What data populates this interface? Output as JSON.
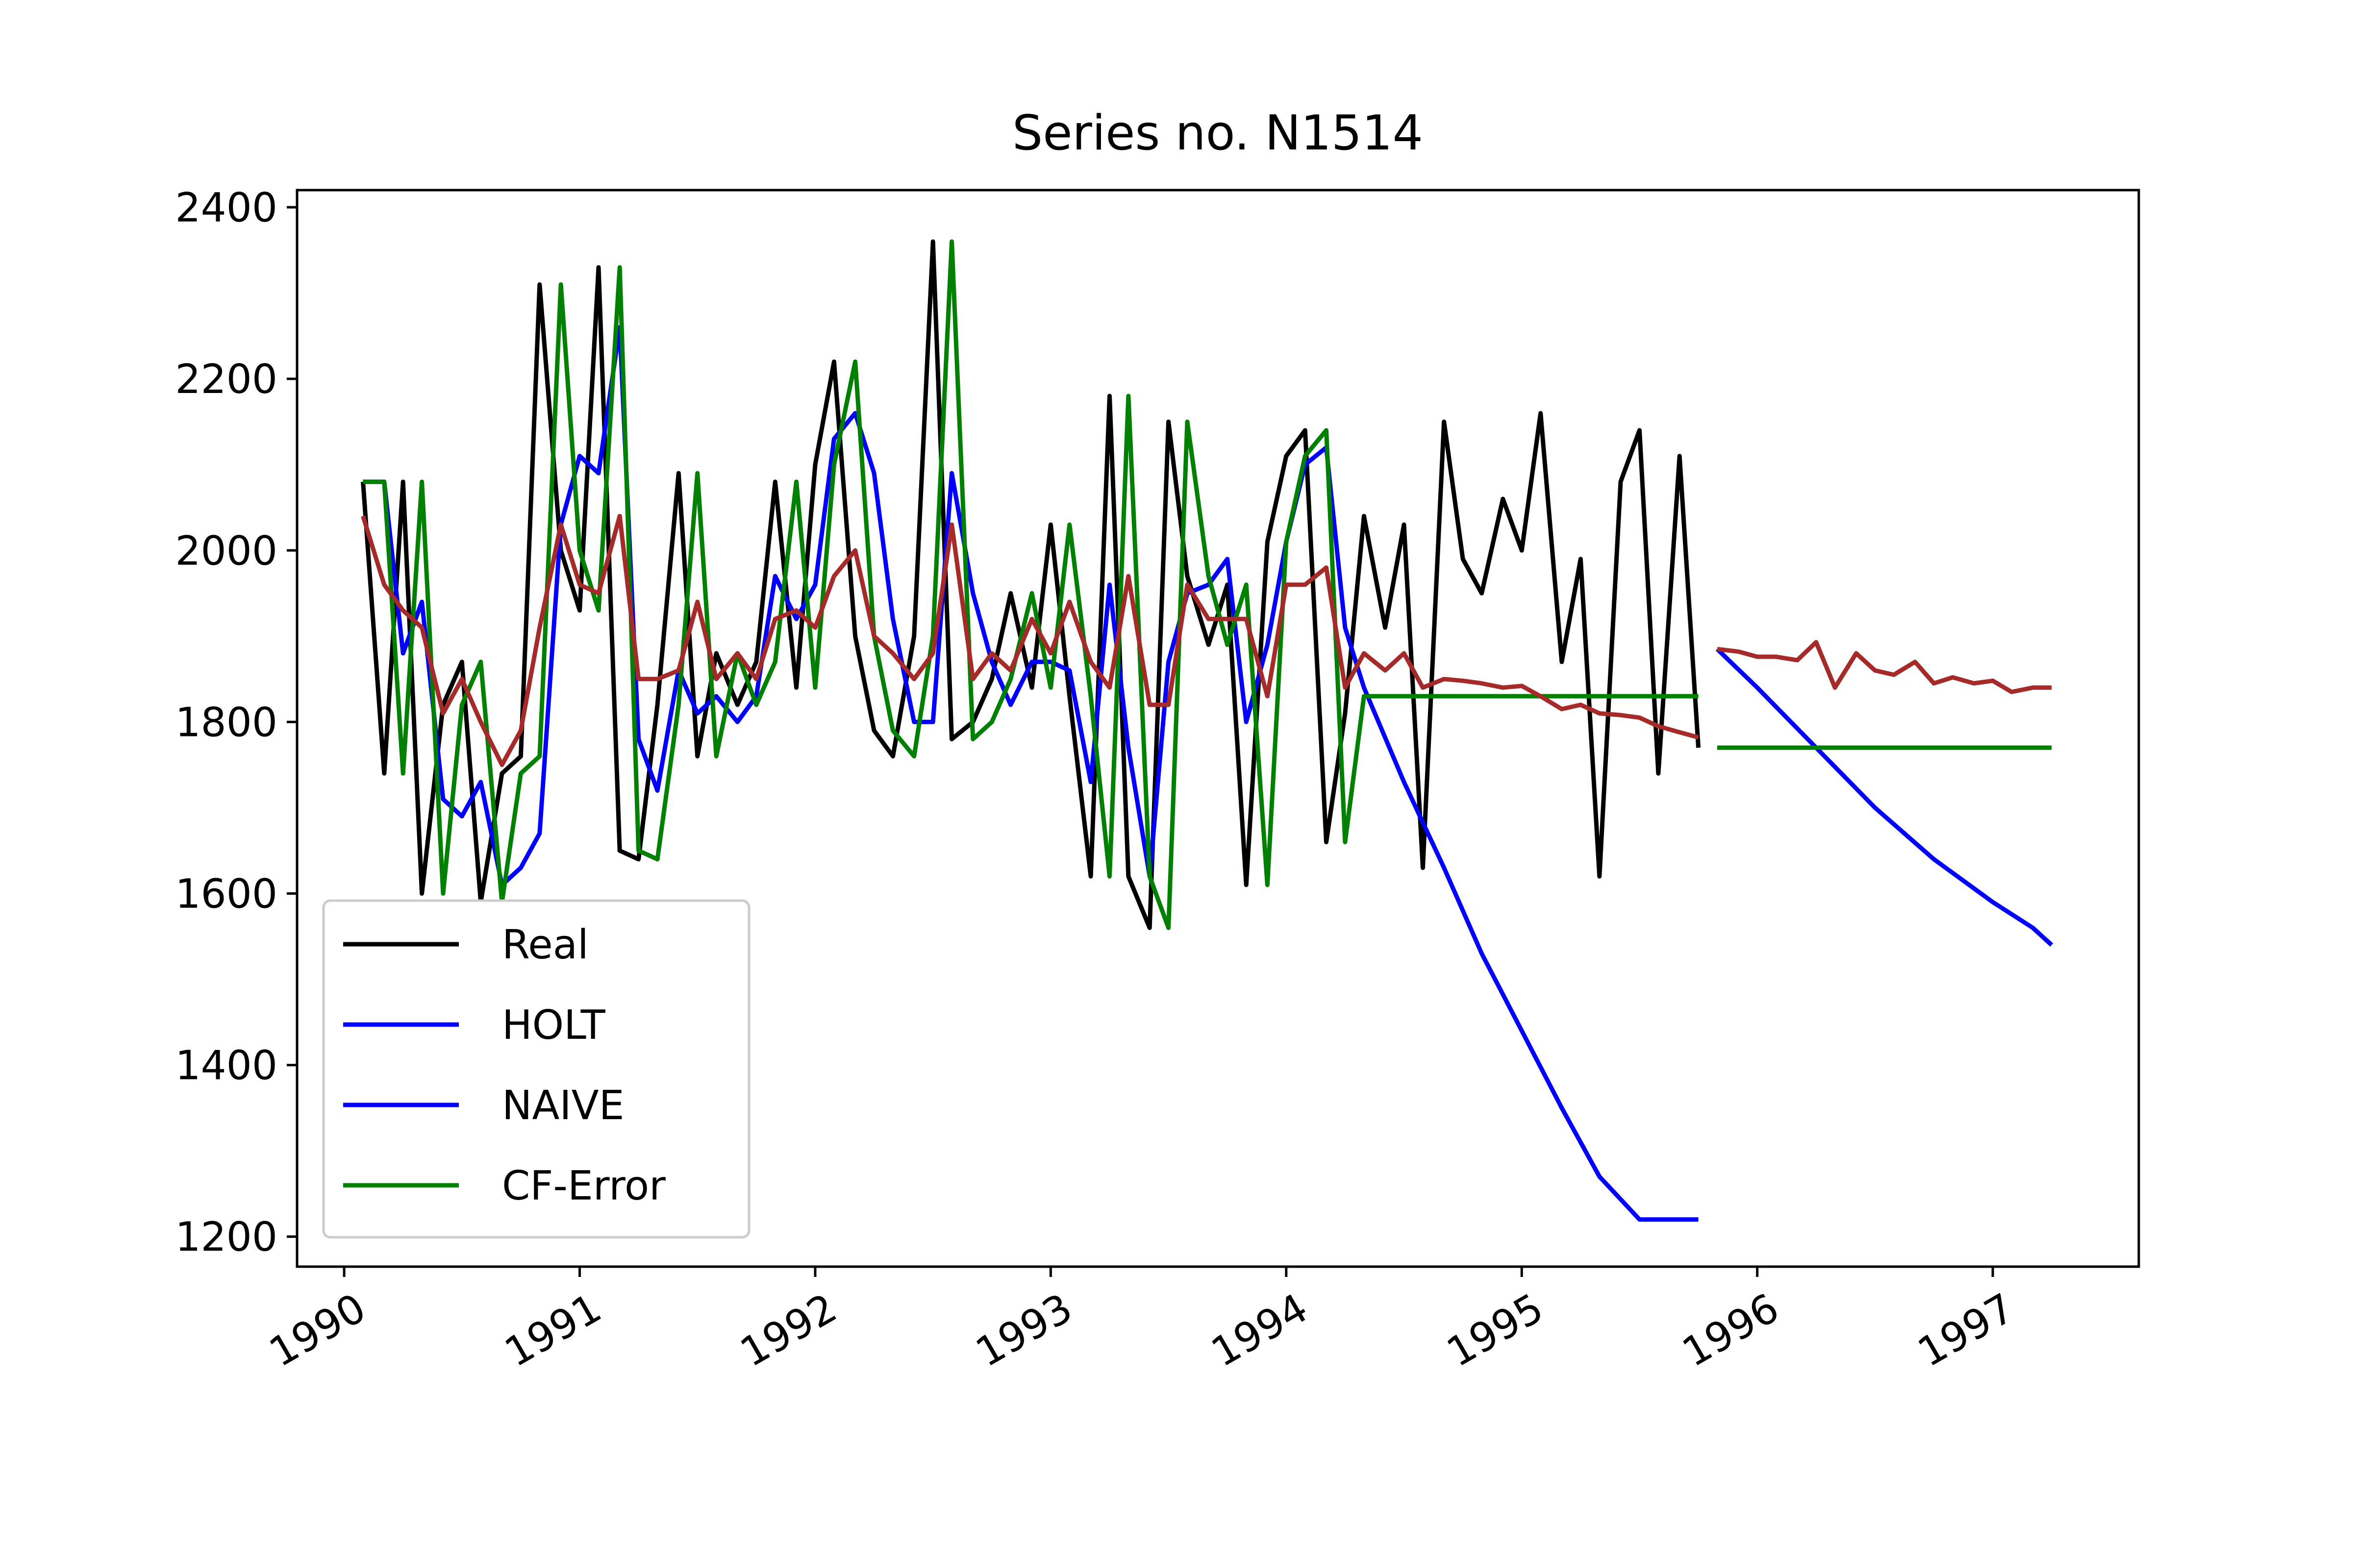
{
  "chart_data": {
    "type": "line",
    "title": "Series no. N1514",
    "xlabel": "",
    "ylabel": "",
    "xlim": [
      1989.8,
      1997.62
    ],
    "ylim": [
      1165,
      2420
    ],
    "x_ticks": [
      {
        "label": "1990",
        "value": 1990
      },
      {
        "label": "1991",
        "value": 1991
      },
      {
        "label": "1992",
        "value": 1992
      },
      {
        "label": "1993",
        "value": 1993
      },
      {
        "label": "1994",
        "value": 1994
      },
      {
        "label": "1995",
        "value": 1995
      },
      {
        "label": "1996",
        "value": 1996
      },
      {
        "label": "1997",
        "value": 1997
      }
    ],
    "y_ticks": [
      {
        "label": "1200",
        "value": 1200
      },
      {
        "label": "1400",
        "value": 1400
      },
      {
        "label": "1600",
        "value": 1600
      },
      {
        "label": "1800",
        "value": 1800
      },
      {
        "label": "2000",
        "value": 2000
      },
      {
        "label": "2200",
        "value": 2200
      },
      {
        "label": "2400",
        "value": 2400
      }
    ],
    "grid": false,
    "legend_position": "lower-left",
    "series": [
      {
        "name": "Real",
        "color": "#000000",
        "in_legend": true,
        "x": [
          1990.08,
          1990.17,
          1990.25,
          1990.33,
          1990.42,
          1990.5,
          1990.58,
          1990.67,
          1990.75,
          1990.83,
          1990.92,
          1991.0,
          1991.08,
          1991.17,
          1991.25,
          1991.33,
          1991.42,
          1991.5,
          1991.58,
          1991.67,
          1991.75,
          1991.83,
          1991.92,
          1992.0,
          1992.08,
          1992.17,
          1992.25,
          1992.33,
          1992.42,
          1992.5,
          1992.58,
          1992.67,
          1992.75,
          1992.83,
          1992.92,
          1993.0,
          1993.08,
          1993.17,
          1993.25,
          1993.33,
          1993.42,
          1993.5,
          1993.58,
          1993.67,
          1993.75,
          1993.83,
          1993.92,
          1994.0,
          1994.08,
          1994.17,
          1994.25,
          1994.33,
          1994.42,
          1994.5,
          1994.58,
          1994.67,
          1994.75,
          1994.83,
          1994.92,
          1995.0,
          1995.08,
          1995.17,
          1995.25,
          1995.33,
          1995.42,
          1995.5,
          1995.58,
          1995.67,
          1995.75
        ],
        "y": [
          2080,
          1740,
          2080,
          1600,
          1820,
          1870,
          1590,
          1740,
          1760,
          2310,
          2000,
          1930,
          2330,
          1650,
          1640,
          1820,
          2090,
          1760,
          1880,
          1820,
          1870,
          2080,
          1840,
          2100,
          2220,
          1900,
          1790,
          1760,
          1900,
          2360,
          1780,
          1800,
          1850,
          1950,
          1840,
          2030,
          1830,
          1620,
          2180,
          1620,
          1560,
          2150,
          1970,
          1890,
          1960,
          1610,
          2010,
          2110,
          2140,
          1660,
          1810,
          2040,
          1910,
          2030,
          1630,
          2150,
          1990,
          1950,
          2060,
          2000,
          2160,
          1870,
          1990,
          1620,
          2080,
          2140,
          1740,
          2110,
          1770
        ]
      },
      {
        "name": "HOLT",
        "color": "#0000ff",
        "in_legend": true,
        "x": [
          1990.08,
          1990.17,
          1990.25,
          1990.33,
          1990.42,
          1990.5,
          1990.58,
          1990.67,
          1990.75,
          1990.83,
          1990.92,
          1991.0,
          1991.08,
          1991.17,
          1991.25,
          1991.33,
          1991.42,
          1991.5,
          1991.58,
          1991.67,
          1991.75,
          1991.83,
          1991.92,
          1992.0,
          1992.08,
          1992.17,
          1992.25,
          1992.33,
          1992.42,
          1992.5,
          1992.58,
          1992.67,
          1992.75,
          1992.83,
          1992.92,
          1993.0,
          1993.08,
          1993.17,
          1993.25,
          1993.33,
          1993.42,
          1993.5,
          1993.58,
          1993.67,
          1993.75,
          1993.83,
          1993.92,
          1994.0,
          1994.08,
          1994.17,
          1994.25,
          1994.33,
          1994.5,
          1994.67,
          1994.83,
          1995.0,
          1995.17,
          1995.33,
          1995.5,
          1995.75
        ],
        "y": [
          2080,
          2080,
          1880,
          1940,
          1710,
          1690,
          1730,
          1610,
          1630,
          1670,
          2030,
          2110,
          2090,
          2260,
          1780,
          1720,
          1860,
          1810,
          1830,
          1800,
          1830,
          1970,
          1920,
          1960,
          2130,
          2160,
          2090,
          1920,
          1800,
          1800,
          2090,
          1950,
          1870,
          1820,
          1870,
          1870,
          1860,
          1730,
          1960,
          1770,
          1620,
          1870,
          1950,
          1960,
          1990,
          1800,
          1890,
          2010,
          2100,
          2120,
          1910,
          1840,
          1730,
          1630,
          1530,
          1440,
          1350,
          1270,
          1220,
          1220
        ]
      },
      {
        "name": "HOLT-forecast",
        "color": "#0000ff",
        "in_legend": false,
        "x": [
          1995.83,
          1996.0,
          1996.25,
          1996.5,
          1996.75,
          1997.0,
          1997.17,
          1997.25
        ],
        "y": [
          1885,
          1840,
          1770,
          1700,
          1640,
          1590,
          1560,
          1540
        ]
      },
      {
        "name": "NAIVE",
        "color": "#0000ff",
        "in_legend": true,
        "x": [],
        "y": []
      },
      {
        "name": "CF-Error",
        "color": "#008000",
        "in_legend": true,
        "x": [
          1990.08,
          1990.17,
          1990.25,
          1990.33,
          1990.42,
          1990.5,
          1990.58,
          1990.67,
          1990.75,
          1990.83,
          1990.92,
          1991.0,
          1991.08,
          1991.17,
          1991.25,
          1991.33,
          1991.42,
          1991.5,
          1991.58,
          1991.67,
          1991.75,
          1991.83,
          1991.92,
          1992.0,
          1992.08,
          1992.17,
          1992.25,
          1992.33,
          1992.42,
          1992.5,
          1992.58,
          1992.67,
          1992.75,
          1992.83,
          1992.92,
          1993.0,
          1993.08,
          1993.17,
          1993.25,
          1993.33,
          1993.42,
          1993.5,
          1993.58,
          1993.67,
          1993.75,
          1993.83,
          1993.92,
          1994.0,
          1994.08,
          1994.17,
          1994.25,
          1994.33,
          1995.75
        ],
        "y": [
          2080,
          2080,
          1740,
          2080,
          1600,
          1820,
          1870,
          1590,
          1740,
          1760,
          2310,
          2000,
          1930,
          2330,
          1650,
          1640,
          1820,
          2090,
          1760,
          1880,
          1820,
          1870,
          2080,
          1840,
          2100,
          2220,
          1900,
          1790,
          1760,
          1900,
          2360,
          1780,
          1800,
          1850,
          1950,
          1840,
          2030,
          1830,
          1620,
          2180,
          1620,
          1560,
          2150,
          1970,
          1890,
          1960,
          1610,
          2010,
          2110,
          2140,
          1660,
          1830,
          1830
        ]
      },
      {
        "name": "CF-Error-forecast",
        "color": "#008000",
        "in_legend": false,
        "x": [
          1995.83,
          1997.25
        ],
        "y": [
          1770,
          1770
        ]
      },
      {
        "name": "brown-in-sample",
        "color": "#a52a2a",
        "in_legend": false,
        "x": [
          1990.08,
          1990.17,
          1990.25,
          1990.33,
          1990.42,
          1990.5,
          1990.58,
          1990.67,
          1990.75,
          1990.83,
          1990.92,
          1991.0,
          1991.08,
          1991.17,
          1991.25,
          1991.33,
          1991.42,
          1991.5,
          1991.58,
          1991.67,
          1991.75,
          1991.83,
          1991.92,
          1992.0,
          1992.08,
          1992.17,
          1992.25,
          1992.33,
          1992.42,
          1992.5,
          1992.58,
          1992.67,
          1992.75,
          1992.83,
          1992.92,
          1993.0,
          1993.08,
          1993.17,
          1993.25,
          1993.33,
          1993.42,
          1993.5,
          1993.58,
          1993.67,
          1993.75,
          1993.83,
          1993.92,
          1994.0,
          1994.08,
          1994.17,
          1994.25,
          1994.33,
          1994.42,
          1994.5,
          1994.58,
          1994.67,
          1994.75,
          1994.83,
          1994.92,
          1995.0,
          1995.08,
          1995.17,
          1995.25,
          1995.33,
          1995.42,
          1995.5,
          1995.58,
          1995.67,
          1995.75
        ],
        "y": [
          2040,
          1960,
          1930,
          1910,
          1810,
          1850,
          1800,
          1750,
          1790,
          1910,
          2030,
          1960,
          1950,
          2040,
          1850,
          1850,
          1860,
          1940,
          1850,
          1880,
          1850,
          1920,
          1930,
          1910,
          1970,
          2000,
          1900,
          1880,
          1850,
          1880,
          2030,
          1850,
          1880,
          1860,
          1920,
          1880,
          1940,
          1870,
          1840,
          1970,
          1820,
          1820,
          1960,
          1920,
          1920,
          1920,
          1830,
          1960,
          1960,
          1980,
          1840,
          1880,
          1860,
          1880,
          1840,
          1850,
          1848,
          1845,
          1840,
          1842,
          1830,
          1815,
          1820,
          1810,
          1808,
          1805,
          1795,
          1788,
          1782
        ]
      },
      {
        "name": "brown-forecast",
        "color": "#a52a2a",
        "in_legend": false,
        "x": [
          1995.83,
          1995.92,
          1996.0,
          1996.08,
          1996.17,
          1996.25,
          1996.33,
          1996.42,
          1996.5,
          1996.58,
          1996.67,
          1996.75,
          1996.83,
          1996.92,
          1997.0,
          1997.08,
          1997.17,
          1997.25
        ],
        "y": [
          1885,
          1882,
          1876,
          1876,
          1872,
          1893,
          1840,
          1880,
          1860,
          1855,
          1870,
          1845,
          1852,
          1845,
          1848,
          1835,
          1840,
          1840
        ]
      }
    ]
  }
}
